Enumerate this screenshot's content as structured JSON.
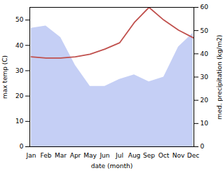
{
  "chart_data": {
    "type": "line",
    "categories": [
      "Jan",
      "Feb",
      "Mar",
      "Apr",
      "May",
      "Jun",
      "Jul",
      "Aug",
      "Sep",
      "Oct",
      "Nov",
      "Dec"
    ],
    "series": [
      {
        "type": "area",
        "color": "#c5cff5",
        "axis": "y2",
        "values": [
          51,
          52,
          47,
          35,
          26,
          26,
          29,
          31,
          28,
          30,
          43,
          49
        ]
      },
      {
        "type": "line",
        "color": "#c0504d",
        "values": [
          35.5,
          35,
          35,
          35.5,
          36.5,
          38.5,
          41,
          49,
          55,
          50,
          46,
          43
        ]
      }
    ],
    "xlabel": "date (month)",
    "ylabel": "max temp (C)",
    "y2label": "med. precipitation (kg/m2)",
    "ylim": [
      0,
      55
    ],
    "yticks": [
      0,
      10,
      20,
      30,
      40,
      50
    ],
    "y2lim": [
      0,
      60
    ],
    "y2ticks": [
      0,
      10,
      20,
      30,
      40,
      50,
      60
    ]
  }
}
